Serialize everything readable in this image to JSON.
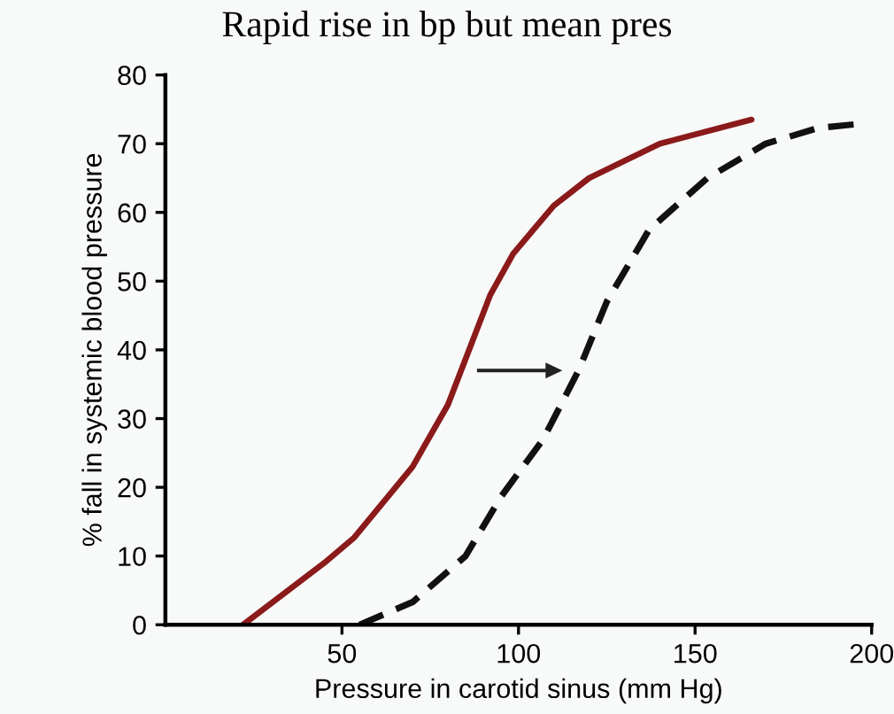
{
  "chart_data": {
    "type": "line",
    "xlabel": "Pressure in carotid sinus (mm Hg)",
    "ylabel": "% fall in systemic blood pressure",
    "annotations": [
      "Rapid rise in bp but mean pres"
    ],
    "xlim": [
      0,
      200
    ],
    "xticks": [
      50,
      100,
      150,
      200
    ],
    "ylim": [
      0,
      80
    ],
    "yticks": [
      0,
      10,
      20,
      30,
      40,
      50,
      60,
      70,
      80
    ],
    "grid": false,
    "marker": "none",
    "series": [
      {
        "color": "#8b1a1a",
        "line_style": "solid",
        "x": [
          22,
          45,
          53.5,
          70,
          80,
          86,
          92,
          98.5,
          110,
          120,
          140,
          166
        ],
        "values": [
          0,
          9,
          12.7,
          23,
          32,
          40,
          48,
          54,
          61,
          65,
          70,
          73.5
        ]
      },
      {
        "color": "#111111",
        "line_style": "dashed",
        "x": [
          55,
          70,
          85,
          95,
          107,
          117,
          125,
          137,
          153.5,
          170,
          185,
          195
        ],
        "values": [
          0,
          3.3,
          10,
          18.6,
          27,
          37,
          47,
          57.5,
          65,
          70,
          72.3,
          72.8
        ]
      }
    ]
  }
}
